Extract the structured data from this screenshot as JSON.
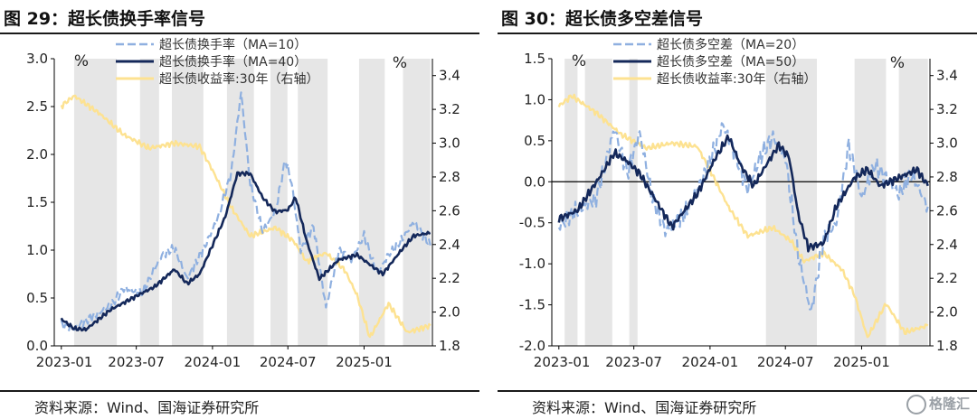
{
  "charts": [
    {
      "title": "图 29：超长债换手率信号",
      "source": "资料来源：Wind、国海证券研究所",
      "chart_data": {
        "type": "line",
        "x_ticks": [
          "2023-01",
          "2023-07",
          "2024-01",
          "2024-07",
          "2025-01"
        ],
        "y_left": {
          "range": [
            0,
            3.0
          ],
          "ticks": [
            "0.0",
            "0.5",
            "1.0",
            "1.5",
            "2.0",
            "2.5",
            "3.0"
          ],
          "unit": "%"
        },
        "y_right": {
          "range": [
            1.8,
            3.5
          ],
          "ticks": [
            "1.8",
            "2.0",
            "2.2",
            "2.4",
            "2.6",
            "2.8",
            "3.0",
            "3.2",
            "3.4"
          ],
          "unit": "%"
        },
        "grid": false,
        "legend_position": "top-center",
        "shaded_periods": [
          [
            "2023-02-01",
            "2023-05-15"
          ],
          [
            "2023-07-10",
            "2023-08-25"
          ],
          [
            "2023-09-25",
            "2023-12-10"
          ],
          [
            "2024-02-05",
            "2024-04-10"
          ],
          [
            "2024-05-20",
            "2024-06-30"
          ],
          [
            "2024-07-25",
            "2024-10-05"
          ],
          [
            "2024-12-20",
            "2025-02-20"
          ],
          [
            "2025-04-05",
            "2025-06-10"
          ]
        ],
        "series": [
          {
            "name": "超长债换手率（MA=10）",
            "axis": "left",
            "style": "dashed",
            "color": "#8fb0e0",
            "points": [
              [
                "2023-01-01",
                0.22
              ],
              [
                "2023-02-01",
                0.18
              ],
              [
                "2023-03-15",
                0.3
              ],
              [
                "2023-05-01",
                0.42
              ],
              [
                "2023-06-01",
                0.6
              ],
              [
                "2023-07-15",
                0.55
              ],
              [
                "2023-09-01",
                0.95
              ],
              [
                "2023-10-01",
                1.02
              ],
              [
                "2023-11-01",
                0.7
              ],
              [
                "2023-12-15",
                1.05
              ],
              [
                "2024-01-15",
                1.35
              ],
              [
                "2024-02-15",
                1.8
              ],
              [
                "2024-03-10",
                2.65
              ],
              [
                "2024-04-01",
                1.7
              ],
              [
                "2024-05-01",
                1.2
              ],
              [
                "2024-06-01",
                1.4
              ],
              [
                "2024-06-25",
                1.95
              ],
              [
                "2024-07-10",
                1.7
              ],
              [
                "2024-08-01",
                1.0
              ],
              [
                "2024-09-01",
                1.25
              ],
              [
                "2024-10-01",
                0.4
              ],
              [
                "2024-11-01",
                1.0
              ],
              [
                "2024-12-01",
                0.9
              ],
              [
                "2025-01-01",
                1.15
              ],
              [
                "2025-02-01",
                0.75
              ],
              [
                "2025-03-01",
                0.95
              ],
              [
                "2025-04-01",
                1.1
              ],
              [
                "2025-05-01",
                1.3
              ],
              [
                "2025-06-10",
                1.05
              ]
            ]
          },
          {
            "name": "超长债换手率（MA=40）",
            "axis": "left",
            "style": "solid",
            "color": "#14285a",
            "points": [
              [
                "2023-01-01",
                0.28
              ],
              [
                "2023-02-01",
                0.18
              ],
              [
                "2023-03-01",
                0.17
              ],
              [
                "2023-05-01",
                0.38
              ],
              [
                "2023-07-01",
                0.52
              ],
              [
                "2023-08-15",
                0.62
              ],
              [
                "2023-10-01",
                0.8
              ],
              [
                "2023-11-01",
                0.65
              ],
              [
                "2023-12-01",
                0.75
              ],
              [
                "2024-01-01",
                1.05
              ],
              [
                "2024-02-01",
                1.35
              ],
              [
                "2024-03-01",
                1.8
              ],
              [
                "2024-04-01",
                1.8
              ],
              [
                "2024-05-01",
                1.55
              ],
              [
                "2024-06-01",
                1.4
              ],
              [
                "2024-07-01",
                1.42
              ],
              [
                "2024-07-20",
                1.55
              ],
              [
                "2024-08-15",
                1.1
              ],
              [
                "2024-09-15",
                0.7
              ],
              [
                "2024-11-01",
                0.9
              ],
              [
                "2024-12-15",
                0.95
              ],
              [
                "2025-01-15",
                0.85
              ],
              [
                "2025-02-15",
                0.75
              ],
              [
                "2025-04-01",
                1.0
              ],
              [
                "2025-05-01",
                1.15
              ],
              [
                "2025-06-10",
                1.18
              ]
            ]
          },
          {
            "name": "超长债收益率:30年（右轴）",
            "axis": "right",
            "style": "solid",
            "color": "#fde291",
            "points": [
              [
                "2023-01-01",
                3.22
              ],
              [
                "2023-02-01",
                3.28
              ],
              [
                "2023-04-01",
                3.18
              ],
              [
                "2023-06-01",
                3.05
              ],
              [
                "2023-08-01",
                2.97
              ],
              [
                "2023-10-01",
                3.0
              ],
              [
                "2023-12-01",
                2.98
              ],
              [
                "2024-01-01",
                2.84
              ],
              [
                "2024-02-15",
                2.62
              ],
              [
                "2024-04-01",
                2.45
              ],
              [
                "2024-06-01",
                2.5
              ],
              [
                "2024-07-15",
                2.42
              ],
              [
                "2024-08-15",
                2.3
              ],
              [
                "2024-10-01",
                2.35
              ],
              [
                "2024-11-15",
                2.25
              ],
              [
                "2024-12-15",
                2.1
              ],
              [
                "2025-01-15",
                1.85
              ],
              [
                "2025-03-01",
                2.05
              ],
              [
                "2025-04-15",
                1.88
              ],
              [
                "2025-06-10",
                1.92
              ]
            ]
          }
        ]
      }
    },
    {
      "title": "图 30：超长债多空差信号",
      "source": "资料来源：Wind、国海证券研究所",
      "chart_data": {
        "type": "line",
        "x_ticks": [
          "2023-01",
          "2023-07",
          "2024-01",
          "2024-07",
          "2025-01"
        ],
        "y_left": {
          "range": [
            -2.0,
            1.5
          ],
          "ticks": [
            "-2.0",
            "-1.5",
            "-1.0",
            "-0.5",
            "0.0",
            "0.5",
            "1.0",
            "1.5"
          ],
          "unit": "%"
        },
        "y_right": {
          "range": [
            1.8,
            3.5
          ],
          "ticks": [
            "1.8",
            "2.0",
            "2.2",
            "2.4",
            "2.6",
            "2.8",
            "3.0",
            "3.2",
            "3.4"
          ],
          "unit": "%"
        },
        "grid": false,
        "legend_position": "top-center",
        "zero_line": true,
        "shaded_periods": [
          [
            "2023-01-15",
            "2023-02-15"
          ],
          [
            "2023-03-05",
            "2023-05-10"
          ],
          [
            "2023-06-20",
            "2023-07-10"
          ],
          [
            "2024-05-15",
            "2024-09-15"
          ],
          [
            "2024-12-15",
            "2025-03-01"
          ],
          [
            "2025-04-01",
            "2025-06-10"
          ]
        ],
        "series": [
          {
            "name": "超长债多空差（MA=20）",
            "axis": "left",
            "style": "dashed",
            "color": "#8fb0e0",
            "points": [
              [
                "2023-01-01",
                -0.55
              ],
              [
                "2023-02-01",
                -0.4
              ],
              [
                "2023-04-01",
                -0.2
              ],
              [
                "2023-05-15",
                0.65
              ],
              [
                "2023-06-15",
                0.1
              ],
              [
                "2023-07-15",
                0.6
              ],
              [
                "2023-08-15",
                -0.2
              ],
              [
                "2023-09-15",
                -0.6
              ],
              [
                "2023-11-01",
                -0.4
              ],
              [
                "2023-12-15",
                0.05
              ],
              [
                "2024-01-15",
                0.45
              ],
              [
                "2024-02-01",
                0.7
              ],
              [
                "2024-03-01",
                0.35
              ],
              [
                "2024-04-01",
                -0.1
              ],
              [
                "2024-05-01",
                0.3
              ],
              [
                "2024-06-01",
                0.55
              ],
              [
                "2024-07-01",
                0.3
              ],
              [
                "2024-08-01",
                -0.9
              ],
              [
                "2024-09-01",
                -1.6
              ],
              [
                "2024-10-01",
                -0.7
              ],
              [
                "2024-11-01",
                -0.5
              ],
              [
                "2024-12-01",
                0.45
              ],
              [
                "2025-01-01",
                -0.2
              ],
              [
                "2025-02-01",
                0.2
              ],
              [
                "2025-03-01",
                0.05
              ],
              [
                "2025-04-01",
                -0.15
              ],
              [
                "2025-05-01",
                0.1
              ],
              [
                "2025-06-10",
                -0.3
              ]
            ]
          },
          {
            "name": "超长债多空差（MA=50）",
            "axis": "left",
            "style": "solid",
            "color": "#14285a",
            "points": [
              [
                "2023-01-01",
                -0.45
              ],
              [
                "2023-02-15",
                -0.35
              ],
              [
                "2023-04-15",
                0.1
              ],
              [
                "2023-05-15",
                0.35
              ],
              [
                "2023-06-15",
                0.25
              ],
              [
                "2023-07-15",
                0.1
              ],
              [
                "2023-09-01",
                -0.3
              ],
              [
                "2023-10-01",
                -0.55
              ],
              [
                "2023-12-01",
                -0.15
              ],
              [
                "2024-01-15",
                0.3
              ],
              [
                "2024-02-15",
                0.55
              ],
              [
                "2024-03-15",
                0.2
              ],
              [
                "2024-04-15",
                -0.05
              ],
              [
                "2024-05-15",
                0.2
              ],
              [
                "2024-06-15",
                0.45
              ],
              [
                "2024-07-10",
                0.3
              ],
              [
                "2024-08-01",
                -0.4
              ],
              [
                "2024-08-25",
                -0.8
              ],
              [
                "2024-10-01",
                -0.75
              ],
              [
                "2024-11-01",
                -0.3
              ],
              [
                "2024-12-15",
                0.05
              ],
              [
                "2025-01-15",
                0.15
              ],
              [
                "2025-02-15",
                -0.05
              ],
              [
                "2025-04-01",
                0.05
              ],
              [
                "2025-05-15",
                0.15
              ],
              [
                "2025-06-10",
                -0.05
              ]
            ]
          },
          {
            "name": "超长债收益率:30年（右轴）",
            "axis": "right",
            "style": "solid",
            "color": "#fde291",
            "points": [
              [
                "2023-01-01",
                3.22
              ],
              [
                "2023-02-01",
                3.28
              ],
              [
                "2023-04-01",
                3.18
              ],
              [
                "2023-06-01",
                3.05
              ],
              [
                "2023-08-01",
                2.97
              ],
              [
                "2023-10-01",
                3.0
              ],
              [
                "2023-12-01",
                2.98
              ],
              [
                "2024-01-01",
                2.84
              ],
              [
                "2024-02-15",
                2.62
              ],
              [
                "2024-04-01",
                2.45
              ],
              [
                "2024-06-01",
                2.5
              ],
              [
                "2024-07-15",
                2.42
              ],
              [
                "2024-08-15",
                2.3
              ],
              [
                "2024-10-01",
                2.35
              ],
              [
                "2024-11-15",
                2.25
              ],
              [
                "2024-12-15",
                2.1
              ],
              [
                "2025-01-15",
                1.85
              ],
              [
                "2025-03-01",
                2.05
              ],
              [
                "2025-04-15",
                1.88
              ],
              [
                "2025-06-10",
                1.92
              ]
            ]
          }
        ]
      }
    }
  ],
  "watermark": "格隆汇"
}
